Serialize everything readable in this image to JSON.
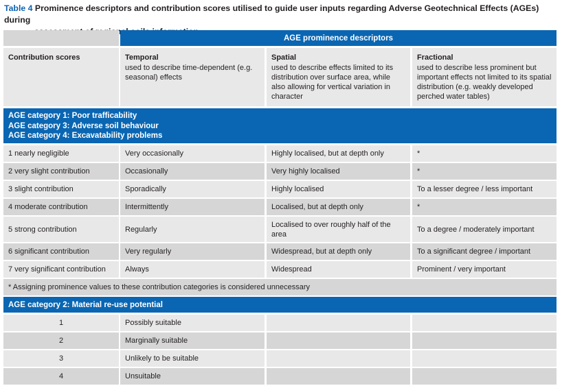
{
  "caption": {
    "label": "Table 4",
    "line1": "Prominence descriptors and contribution scores utilised to guide user inputs regarding Adverse Geotechnical Effects (AGEs) during",
    "line2": "assessment of regional soils information"
  },
  "header": {
    "group_title": "AGE prominence descriptors",
    "contribution": "Contribution scores",
    "temporal": {
      "title": "Temporal",
      "desc": "used to describe time-dependent (e.g. seasonal) effects"
    },
    "spatial": {
      "title": "Spatial",
      "desc": "used to describe effects limited to its distribution over surface area, while also allowing for vertical variation in character"
    },
    "fractional": {
      "title": "Fractional",
      "desc": "used to describe less prominent but important effects not limited to its spatial distribution (e.g. weakly developed perched water tables)"
    }
  },
  "section1": {
    "categories": [
      "AGE category 1: Poor trafficability",
      "AGE category 3: Adverse soil behaviour",
      "AGE category 4: Excavatability problems"
    ],
    "rows": [
      {
        "score": "1 nearly negligible",
        "temporal": "Very occasionally",
        "spatial": "Highly localised, but at depth only",
        "fractional": "*"
      },
      {
        "score": "2 very slight contribution",
        "temporal": "Occasionally",
        "spatial": "Very highly localised",
        "fractional": "*"
      },
      {
        "score": "3 slight contribution",
        "temporal": "Sporadically",
        "spatial": "Highly localised",
        "fractional": "To a lesser degree / less important"
      },
      {
        "score": "4 moderate contribution",
        "temporal": "Intermittently",
        "spatial": "Localised, but at depth only",
        "fractional": "*"
      },
      {
        "score": "5 strong contribution",
        "temporal": "Regularly",
        "spatial": "Localised to over roughly half of the area",
        "fractional": "To a degree / moderately important"
      },
      {
        "score": "6 significant contribution",
        "temporal": "Very regularly",
        "spatial": "Widespread, but at depth only",
        "fractional": "To a significant degree / important"
      },
      {
        "score": "7 very significant contribution",
        "temporal": "Always",
        "spatial": "Widespread",
        "fractional": "Prominent / very important"
      }
    ],
    "footnote": "* Assigning prominence values to these contribution categories is considered unnecessary"
  },
  "section2": {
    "category": "AGE category 2: Material re-use potential",
    "rows": [
      {
        "score": "1",
        "temporal": "Possibly suitable"
      },
      {
        "score": "2",
        "temporal": "Marginally suitable"
      },
      {
        "score": "3",
        "temporal": "Unlikely to be suitable"
      },
      {
        "score": "4",
        "temporal": "Unsuitable"
      }
    ]
  },
  "colors": {
    "header_blue": "#0a66b2",
    "caption_label": "#0f62ae",
    "row_light": "#e8e8e8",
    "row_dark": "#d6d6d6"
  }
}
